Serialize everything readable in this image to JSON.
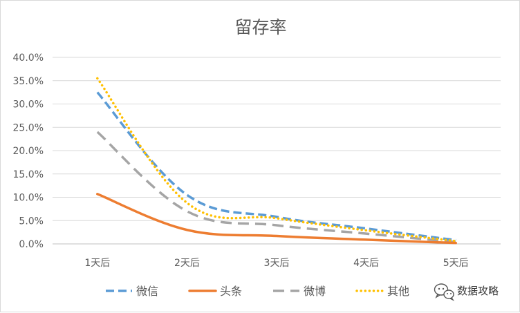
{
  "chart_data": {
    "type": "line",
    "title": "留存率",
    "categories": [
      "1天后",
      "2天后",
      "3天后",
      "4天后",
      "5天后"
    ],
    "y_ticks": [
      "0.0%",
      "5.0%",
      "10.0%",
      "15.0%",
      "20.0%",
      "25.0%",
      "30.0%",
      "35.0%",
      "40.0%"
    ],
    "ylim": [
      0,
      40
    ],
    "grid": true,
    "legend_position": "bottom",
    "series": [
      {
        "name": "微信",
        "values": [
          32.5,
          10.5,
          5.8,
          3.3,
          0.8
        ],
        "color": "#5b9bd5",
        "style": "dashed"
      },
      {
        "name": "头条",
        "values": [
          10.7,
          3.0,
          1.7,
          0.9,
          0.2
        ],
        "color": "#ed7d31",
        "style": "solid"
      },
      {
        "name": "微博",
        "values": [
          24.0,
          7.0,
          4.0,
          2.2,
          0.4
        ],
        "color": "#a5a5a5",
        "style": "long-dashed"
      },
      {
        "name": "其他",
        "values": [
          35.5,
          8.8,
          5.5,
          2.9,
          0.6
        ],
        "color": "#ffc000",
        "style": "dotted"
      }
    ]
  },
  "watermark": {
    "icon": "wechat-icon",
    "text": "数据攻略"
  }
}
